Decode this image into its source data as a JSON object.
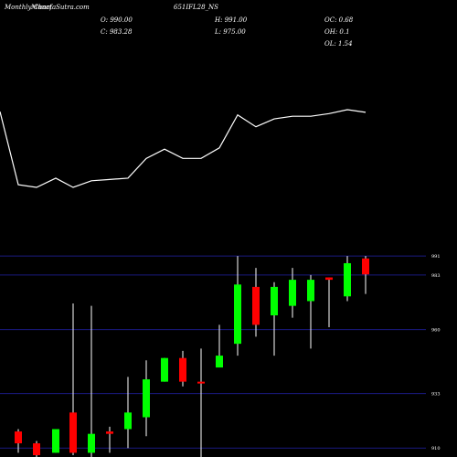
{
  "chart_data": {
    "type": "candlestick",
    "header": {
      "left": "Monthly Chart",
      "overlay": "MunafaSutra.com",
      "symbol": "651IFL28_NS",
      "open_label": "O: 990.00",
      "close_label": "C: 983.28",
      "high_label": "H: 991.00",
      "low_label": "L: 975.00",
      "oc_label": "OC: 0.68",
      "oh_label": "OH: 0.1",
      "ol_label": "OL: 1.54"
    },
    "price_ticks": [
      {
        "value": 991,
        "label": "991"
      },
      {
        "value": 983,
        "label": "983"
      },
      {
        "value": 960,
        "label": "960"
      },
      {
        "value": 933,
        "label": "933"
      },
      {
        "value": 910,
        "label": "910"
      }
    ],
    "ylim": [
      907,
      993
    ],
    "up_color": "#00ff00",
    "down_color": "#ff0000",
    "line_color": "#ffffff",
    "grid_color": "#1a1a80",
    "candles": [
      {
        "x": 20,
        "open": 917,
        "close": 912,
        "high": 918,
        "low": 908
      },
      {
        "x": 40,
        "open": 912,
        "close": 907,
        "high": 913,
        "low": 906
      },
      {
        "x": 61,
        "open": 908,
        "close": 918,
        "high": 918,
        "low": 908
      },
      {
        "x": 80,
        "open": 925,
        "close": 908,
        "high": 971,
        "low": 907
      },
      {
        "x": 100,
        "open": 908,
        "close": 916,
        "high": 970,
        "low": 906
      },
      {
        "x": 120,
        "open": 917,
        "close": 916,
        "high": 919,
        "low": 908
      },
      {
        "x": 140,
        "open": 918,
        "close": 925,
        "high": 940,
        "low": 910
      },
      {
        "x": 160,
        "open": 923,
        "close": 939,
        "high": 947,
        "low": 915
      },
      {
        "x": 180,
        "open": 938,
        "close": 948,
        "high": 948,
        "low": 938
      },
      {
        "x": 200,
        "open": 948,
        "close": 938,
        "high": 951,
        "low": 936
      },
      {
        "x": 220,
        "open": 938,
        "close": 937.5,
        "high": 952,
        "low": 906
      },
      {
        "x": 240,
        "open": 944,
        "close": 949,
        "high": 962,
        "low": 944
      },
      {
        "x": 260,
        "open": 954,
        "close": 979,
        "high": 991,
        "low": 949
      },
      {
        "x": 280,
        "open": 978,
        "close": 962,
        "high": 986,
        "low": 957
      },
      {
        "x": 300,
        "open": 966,
        "close": 978,
        "high": 980,
        "low": 949
      },
      {
        "x": 320,
        "open": 970,
        "close": 981,
        "high": 986,
        "low": 965
      },
      {
        "x": 340,
        "open": 972,
        "close": 981,
        "high": 983,
        "low": 952
      },
      {
        "x": 360,
        "open": 982,
        "close": 981,
        "high": 982,
        "low": 961
      },
      {
        "x": 380,
        "open": 974,
        "close": 988,
        "high": 991,
        "low": 972
      },
      {
        "x": 400,
        "open": 990,
        "close": 983.28,
        "high": 991,
        "low": 975
      }
    ],
    "line_series": [
      30,
      28,
      35,
      28,
      33,
      34,
      35,
      50,
      57,
      50,
      50,
      58,
      83,
      74,
      80,
      82,
      82,
      84,
      87,
      85
    ]
  }
}
